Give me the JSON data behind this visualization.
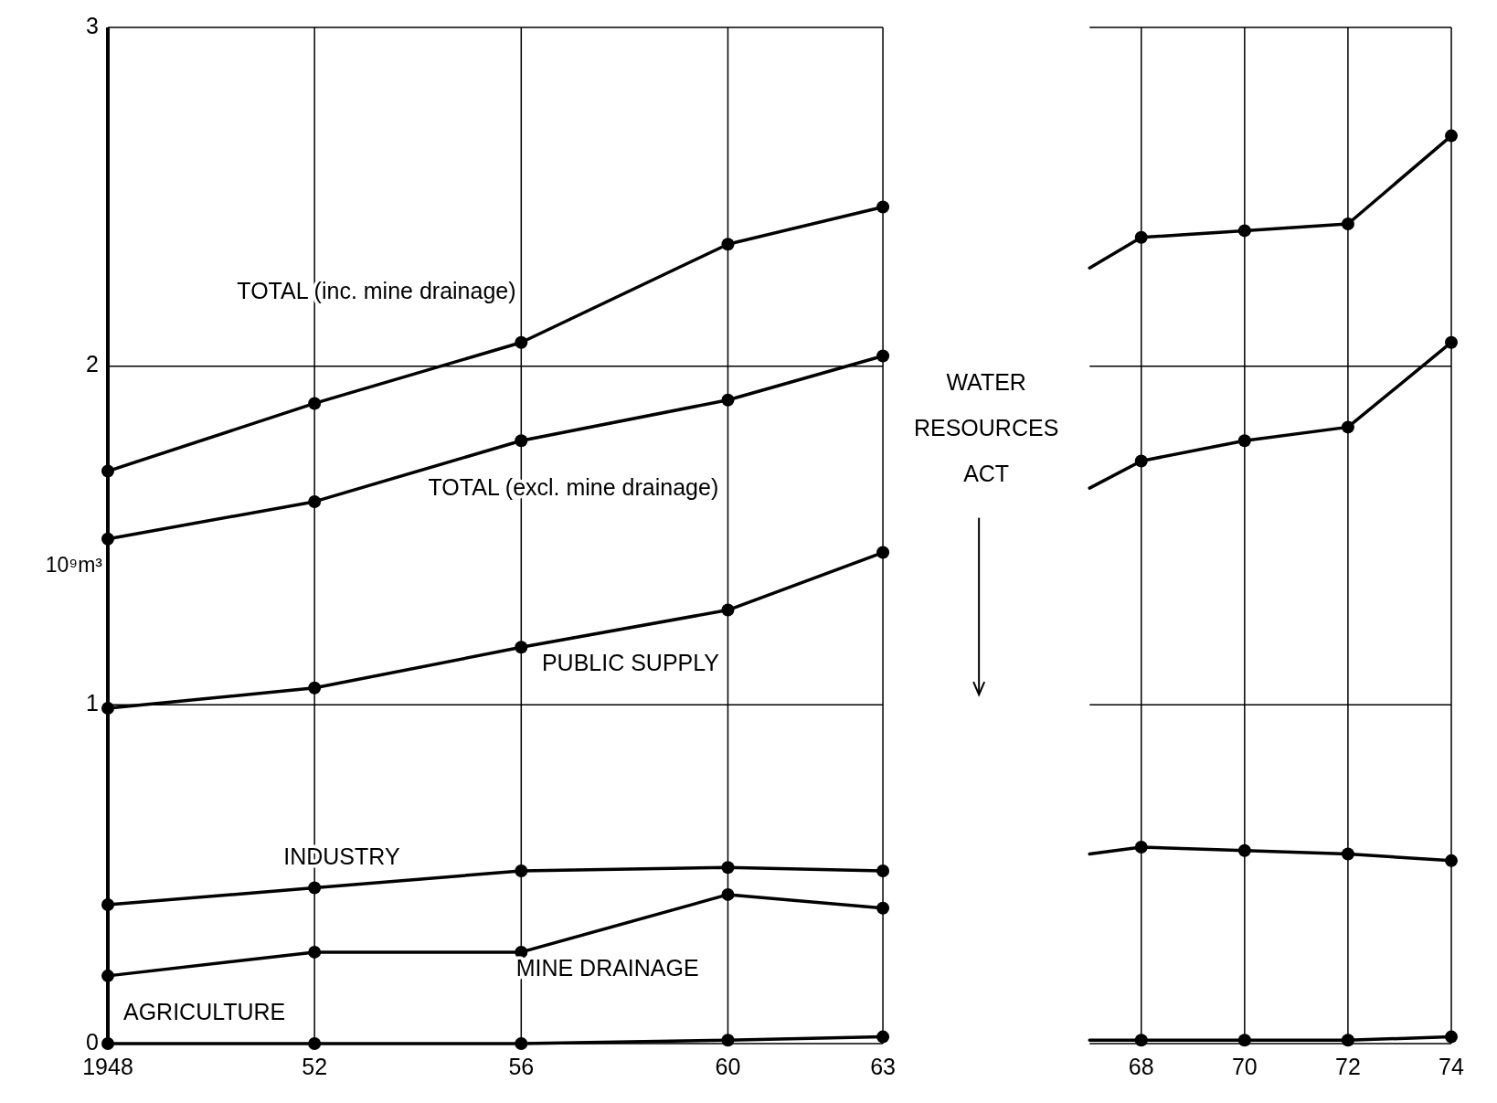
{
  "chart_data": {
    "type": "line",
    "ylabel": "10⁹m³",
    "x": [
      1948,
      1952,
      1956,
      1960,
      1963,
      1965,
      1967,
      1968,
      1970,
      1972,
      1974
    ],
    "xlim": [
      1948,
      1974
    ],
    "xticks": [
      1948,
      {
        "value": 1952,
        "label": "52"
      },
      {
        "value": 1956,
        "label": "56"
      },
      {
        "value": 1960,
        "label": "60"
      },
      {
        "value": 1963,
        "label": "63"
      },
      {
        "value": 1968,
        "label": "68"
      },
      {
        "value": 1970,
        "label": "70"
      },
      {
        "value": 1972,
        "label": "72"
      },
      {
        "value": 1974,
        "label": "74"
      }
    ],
    "ylim": [
      0,
      3
    ],
    "yticks": [
      0,
      1,
      2,
      3
    ],
    "grid": true,
    "marker": "circle",
    "line_style": "solid",
    "series": [
      {
        "name": "TOTAL (inc. mine drainage)",
        "color": "#000000",
        "values": [
          1.69,
          1.89,
          2.07,
          2.36,
          2.47,
          null,
          2.29,
          2.38,
          2.4,
          2.42,
          2.68
        ]
      },
      {
        "name": "TOTAL (excl. mine drainage)",
        "color": "#000000",
        "values": [
          1.49,
          1.6,
          1.78,
          1.9,
          2.03,
          null,
          1.64,
          1.72,
          1.78,
          1.82,
          2.07
        ]
      },
      {
        "name": "PUBLIC SUPPLY",
        "color": "#000000",
        "values": [
          0.99,
          1.05,
          1.17,
          1.28,
          1.45,
          null,
          null,
          null,
          null,
          null,
          null
        ]
      },
      {
        "name": "INDUSTRY",
        "color": "#000000",
        "values": [
          0.41,
          0.46,
          0.51,
          0.52,
          0.51,
          null,
          0.56,
          0.58,
          0.57,
          0.56,
          0.54
        ]
      },
      {
        "name": "MINE DRAINAGE",
        "color": "#000000",
        "values": [
          0.2,
          0.27,
          0.27,
          0.44,
          0.4,
          null,
          null,
          null,
          null,
          null,
          null
        ]
      },
      {
        "name": "AGRICULTURE",
        "color": "#000000",
        "values": [
          0.0,
          0.0,
          0.0,
          0.01,
          0.02,
          null,
          0.01,
          0.01,
          0.01,
          0.01,
          0.02
        ]
      }
    ],
    "annotations": [
      "WATER RESOURCES ACT"
    ]
  }
}
